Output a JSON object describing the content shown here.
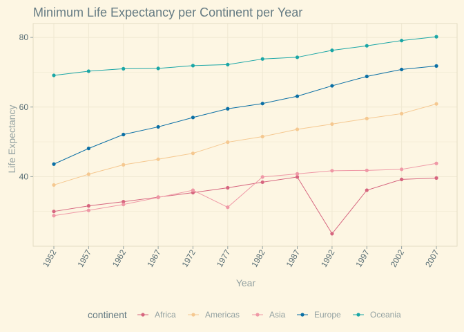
{
  "chart_data": {
    "type": "line",
    "title": "Minimum Life Expectancy per Continent per Year",
    "xlabel": "Year",
    "ylabel": "Life Expectancy",
    "x": [
      1952,
      1957,
      1962,
      1967,
      1972,
      1977,
      1982,
      1987,
      1992,
      1997,
      2002,
      2007
    ],
    "xlim": [
      1952,
      2007
    ],
    "ylim": [
      20,
      84
    ],
    "y_ticks": [
      40,
      60,
      80
    ],
    "grid": true,
    "legend": {
      "title": "continent",
      "position": "bottom"
    },
    "series": [
      {
        "name": "Africa",
        "color": "#d6657f",
        "values": [
          30.0,
          31.6,
          32.8,
          34.1,
          35.4,
          36.8,
          38.4,
          39.9,
          23.6,
          36.1,
          39.2,
          39.6
        ]
      },
      {
        "name": "Americas",
        "color": "#f5c890",
        "values": [
          37.6,
          40.7,
          43.4,
          45.0,
          46.7,
          49.9,
          51.5,
          53.6,
          55.1,
          56.7,
          58.1,
          60.9
        ]
      },
      {
        "name": "Asia",
        "color": "#ef98a6",
        "values": [
          28.8,
          30.3,
          32.0,
          34.0,
          36.1,
          31.2,
          39.9,
          40.8,
          41.7,
          41.8,
          42.1,
          43.8
        ]
      },
      {
        "name": "Europe",
        "color": "#0a6fa5",
        "values": [
          43.6,
          48.1,
          52.1,
          54.3,
          57.0,
          59.5,
          61.0,
          63.1,
          66.1,
          68.8,
          70.8,
          71.8
        ]
      },
      {
        "name": "Oceania",
        "color": "#1aa6a6",
        "values": [
          69.1,
          70.3,
          71.0,
          71.1,
          71.9,
          72.2,
          73.8,
          74.3,
          76.3,
          77.6,
          79.1,
          80.2
        ]
      }
    ]
  }
}
